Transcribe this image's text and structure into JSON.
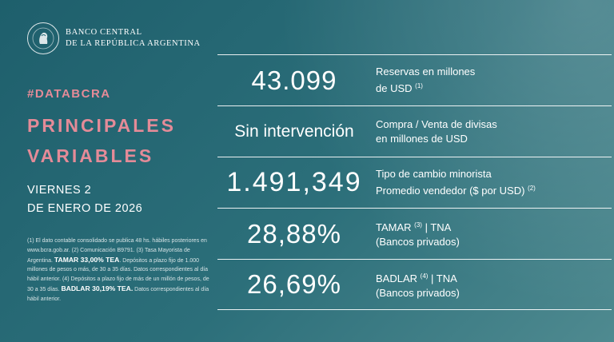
{
  "brand": {
    "line1": "BANCO CENTRAL",
    "line2": "DE LA REPÚBLICA ARGENTINA",
    "logo_icon": "bcra-seal-icon"
  },
  "hashtag": "#DATABCRA",
  "title": {
    "line1": "PRINCIPALES",
    "line2": "VARIABLES"
  },
  "date": {
    "line1": "VIERNES 2",
    "line2": "DE ENERO DE 2026"
  },
  "footnote": {
    "part1": "(1) El dato contable consolidado se publica 48 hs. hábiles posteriores en www.bcra.gob.ar. (2) Comunicación B9791. (3) Tasa Mayorista de Argentina.",
    "bold1": "TAMAR 33,00% TEA",
    "part2": ". Depósitos a plazo fijo de 1.000 millones de pesos o más, de 30 a 35 días. Datos correspondientes al día hábil anterior. (4) Depósitos a plazo fijo de más de un millón de pesos, de 30 a 35 días.",
    "bold2": "BADLAR 30,19% TEA.",
    "part3": " Datos correspondientes al día hábil anterior."
  },
  "rows": [
    {
      "value": "43.099",
      "label1": "Reservas en millones",
      "label2": "de USD",
      "sup": "(1)"
    },
    {
      "value": "Sin intervención",
      "label1": "Compra / Venta de divisas",
      "label2": "en millones de USD",
      "sup": ""
    },
    {
      "value": "1.491,349",
      "label1": "Tipo de cambio minorista",
      "label2": "Promedio vendedor ($ por USD)",
      "sup": "(2)"
    },
    {
      "value": "28,88%",
      "label1": "TAMAR",
      "sup1": "(3)",
      "label1b": " | TNA",
      "label2": "(Bancos privados)"
    },
    {
      "value": "26,69%",
      "label1": "BADLAR",
      "sup1": "(4)",
      "label1b": " | TNA",
      "label2": "(Bancos privados)"
    }
  ],
  "colors": {
    "accent": "#e48b98",
    "background": "#2c6f7a"
  }
}
